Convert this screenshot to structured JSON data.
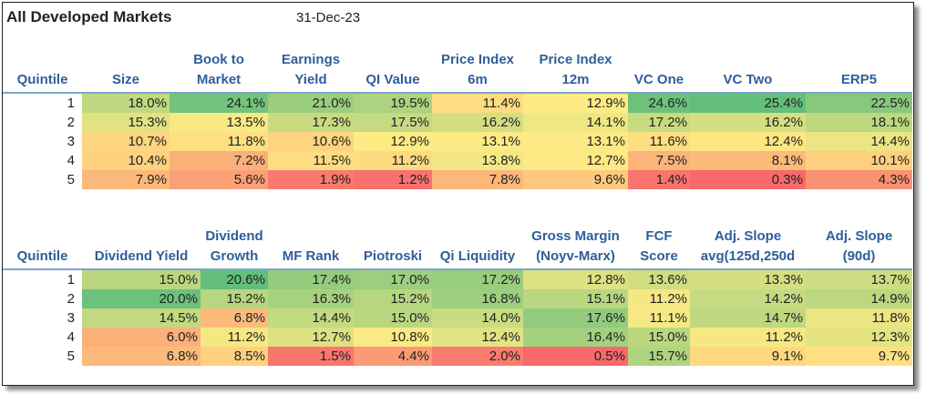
{
  "title": "All Developed Markets",
  "date": "31-Dec-23",
  "tables": [
    {
      "headers": [
        "Quintile",
        "Size",
        "Book to Market",
        "Earnings Yield",
        "QI Value",
        "Price Index 6m",
        "Price Index 12m",
        "VC One",
        "VC Two",
        "ERP5"
      ],
      "rows": [
        {
          "q": "1",
          "cells": [
            "18.0%",
            "24.1%",
            "21.0%",
            "19.5%",
            "11.4%",
            "12.9%",
            "24.6%",
            "25.4%",
            "22.5%"
          ]
        },
        {
          "q": "2",
          "cells": [
            "15.3%",
            "13.5%",
            "17.3%",
            "17.5%",
            "16.2%",
            "14.1%",
            "17.2%",
            "16.2%",
            "18.1%"
          ]
        },
        {
          "q": "3",
          "cells": [
            "10.7%",
            "11.8%",
            "10.6%",
            "12.9%",
            "13.1%",
            "13.1%",
            "11.6%",
            "12.4%",
            "14.4%"
          ]
        },
        {
          "q": "4",
          "cells": [
            "10.4%",
            "7.2%",
            "11.5%",
            "11.2%",
            "13.8%",
            "12.7%",
            "7.5%",
            "8.1%",
            "10.1%"
          ]
        },
        {
          "q": "5",
          "cells": [
            "7.9%",
            "5.6%",
            "1.9%",
            "1.2%",
            "7.8%",
            "9.6%",
            "1.4%",
            "0.3%",
            "4.3%"
          ]
        }
      ]
    },
    {
      "headers": [
        "Quintile",
        "Dividend Yield",
        "Dividend Growth",
        "MF Rank",
        "Piotroski",
        "Qi Liquidity",
        "Gross Margin (Noyv-Marx)",
        "FCF Score",
        "Adj. Slope avg(125d,250d",
        "Adj. Slope (90d)"
      ],
      "rows": [
        {
          "q": "1",
          "cells": [
            "15.0%",
            "20.6%",
            "17.4%",
            "17.0%",
            "17.2%",
            "12.8%",
            "13.6%",
            "13.3%",
            "13.7%"
          ]
        },
        {
          "q": "2",
          "cells": [
            "20.0%",
            "15.2%",
            "16.3%",
            "15.2%",
            "16.8%",
            "15.1%",
            "11.2%",
            "14.2%",
            "14.9%"
          ]
        },
        {
          "q": "3",
          "cells": [
            "14.5%",
            "6.8%",
            "14.4%",
            "15.0%",
            "14.0%",
            "17.6%",
            "11.1%",
            "14.7%",
            "11.8%"
          ]
        },
        {
          "q": "4",
          "cells": [
            "6.0%",
            "11.2%",
            "12.7%",
            "10.8%",
            "12.4%",
            "16.4%",
            "15.0%",
            "11.2%",
            "12.3%"
          ]
        },
        {
          "q": "5",
          "cells": [
            "6.8%",
            "8.5%",
            "1.5%",
            "4.4%",
            "2.0%",
            "0.5%",
            "15.7%",
            "9.1%",
            "9.7%"
          ]
        }
      ]
    }
  ],
  "colors": {
    "header_text": "#2e5f99",
    "header_rule": "#7ba5cf",
    "heat_low": "#f8696b",
    "heat_mid": "#ffeb84",
    "heat_high": "#63be7b"
  }
}
